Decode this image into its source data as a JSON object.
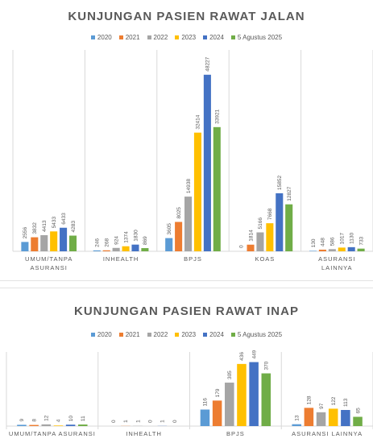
{
  "chart_data": [
    {
      "type": "bar",
      "title": "KUNJUNGAN PASIEN RAWAT JALAN",
      "categories": [
        "UMUM/TANPA ASURANSI",
        "INHEALTH",
        "BPJS",
        "KOAS",
        "ASURANSI LAINNYA"
      ],
      "series": [
        {
          "name": "2020",
          "color": "#5B9BD5",
          "values": [
            2556,
            246,
            3605,
            0,
            130
          ]
        },
        {
          "name": "2021",
          "color": "#ED7D31",
          "values": [
            3832,
            268,
            8025,
            1814,
            448
          ]
        },
        {
          "name": "2022",
          "color": "#A5A5A5",
          "values": [
            4413,
            924,
            14938,
            5166,
            586
          ]
        },
        {
          "name": "2023",
          "color": "#FFC000",
          "values": [
            5433,
            1374,
            32414,
            7668,
            1017
          ]
        },
        {
          "name": "2024",
          "color": "#4472C4",
          "values": [
            6433,
            1830,
            48227,
            15852,
            1130
          ]
        },
        {
          "name": "5 Agustus 2025",
          "color": "#70AD47",
          "values": [
            4283,
            869,
            33921,
            12827,
            733
          ]
        }
      ],
      "value_labels": [
        [
          "2556",
          "3832",
          "4413",
          "5433",
          "6433",
          "4283"
        ],
        [
          "246",
          "268",
          "924",
          "1374",
          "1830",
          "869"
        ],
        [
          "3605",
          "8025",
          "14938",
          "32414",
          "48227",
          "33921"
        ],
        [
          "0",
          "1814",
          "5166",
          "7668",
          "15852",
          "12827"
        ],
        [
          "130",
          "448",
          "586",
          "1017",
          "1130",
          "733"
        ]
      ],
      "ylim": [
        0,
        55000
      ],
      "legend_position": "top"
    },
    {
      "type": "bar",
      "title": "KUNJUNGAN PASIEN RAWAT INAP",
      "categories": [
        "UMUM/TANPA ASURANSI",
        "INHEALTH",
        "BPJS",
        "ASURANSI LAINNYA"
      ],
      "series": [
        {
          "name": "2020",
          "color": "#5B9BD5",
          "values": [
            9,
            0,
            116,
            13
          ]
        },
        {
          "name": "2021",
          "color": "#ED7D31",
          "values": [
            8,
            1,
            179,
            128
          ]
        },
        {
          "name": "2022",
          "color": "#A5A5A5",
          "values": [
            12,
            1,
            305,
            97
          ]
        },
        {
          "name": "2023",
          "color": "#FFC000",
          "values": [
            4,
            0,
            436,
            122
          ]
        },
        {
          "name": "2024",
          "color": "#4472C4",
          "values": [
            10,
            1,
            449,
            113
          ]
        },
        {
          "name": "5 Agustus 2025",
          "color": "#70AD47",
          "values": [
            11,
            0,
            370,
            65
          ]
        }
      ],
      "value_labels": [
        [
          "9",
          "8",
          "12",
          "4",
          "10",
          "11"
        ],
        [
          "0",
          "1",
          "1",
          "0",
          "1",
          "0"
        ],
        [
          "116",
          "179",
          "305",
          "436",
          "449",
          "370"
        ],
        [
          "13",
          "128",
          "97",
          "122",
          "113",
          "65"
        ]
      ],
      "ylim": [
        0,
        520
      ],
      "legend_position": "top"
    }
  ]
}
